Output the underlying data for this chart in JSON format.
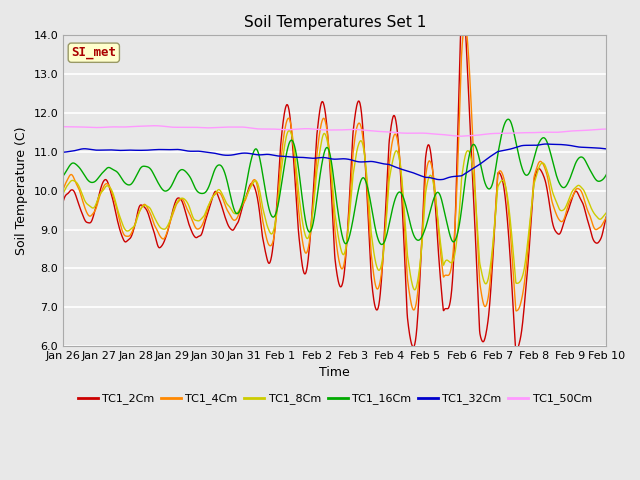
{
  "title": "Soil Temperatures Set 1",
  "xlabel": "Time",
  "ylabel": "Soil Temperature (C)",
  "ylim": [
    6.0,
    14.0
  ],
  "yticks": [
    6.0,
    7.0,
    8.0,
    9.0,
    10.0,
    11.0,
    12.0,
    13.0,
    14.0
  ],
  "legend_labels": [
    "TC1_2Cm",
    "TC1_4Cm",
    "TC1_8Cm",
    "TC1_16Cm",
    "TC1_32Cm",
    "TC1_50Cm"
  ],
  "line_colors": [
    "#cc0000",
    "#ff8800",
    "#cccc00",
    "#00aa00",
    "#0000cc",
    "#ff99ff"
  ],
  "watermark": "SI_met",
  "watermark_color": "#aa0000",
  "watermark_bg": "#ffffcc",
  "watermark_border": "#999966",
  "fig_bg": "#e8e8e8",
  "plot_bg": "#e8e8e8",
  "grid_color": "#ffffff",
  "xtick_labels": [
    "Jan 26",
    "Jan 27",
    "Jan 28",
    "Jan 29",
    "Jan 30",
    "Jan 31",
    "Feb 1",
    "Feb 2",
    "Feb 3",
    "Feb 4",
    "Feb 5",
    "Feb 6",
    "Feb 7",
    "Feb 8",
    "Feb 9",
    "Feb 10"
  ],
  "n_points": 1500
}
